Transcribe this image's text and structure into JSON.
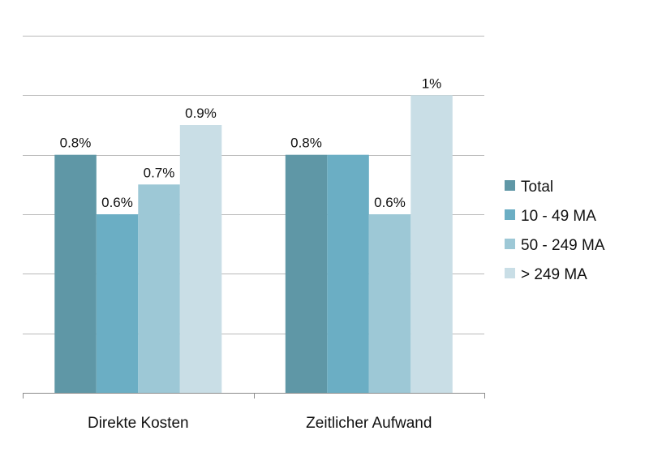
{
  "chart_data": {
    "type": "bar",
    "categories": [
      "Direkte Kosten",
      "Zeitlicher Aufwand"
    ],
    "series": [
      {
        "name": "Total",
        "values": [
          0.8,
          0.8
        ],
        "labels": [
          "0.8%",
          "0.8%"
        ],
        "color": "#5f97a6"
      },
      {
        "name": "10 - 49 MA",
        "values": [
          0.6,
          0.8
        ],
        "labels": [
          "0.6%",
          ""
        ],
        "color": "#6baec4"
      },
      {
        "name": "50 - 249 MA",
        "values": [
          0.7,
          0.6
        ],
        "labels": [
          "0.7%",
          "0.6%"
        ],
        "color": "#9dc8d6"
      },
      {
        "name": "> 249 MA",
        "values": [
          0.9,
          1.0
        ],
        "labels": [
          "0.9%",
          "1%"
        ],
        "color": "#c9dee6"
      }
    ],
    "title": "",
    "xlabel": "",
    "ylabel": "",
    "ylim": [
      0,
      1.2
    ],
    "yticks": [
      0,
      0.2,
      0.4,
      0.6,
      0.8,
      1.0,
      1.2
    ],
    "ytick_labels_shown": false,
    "grid": true,
    "legend_position": "right"
  }
}
